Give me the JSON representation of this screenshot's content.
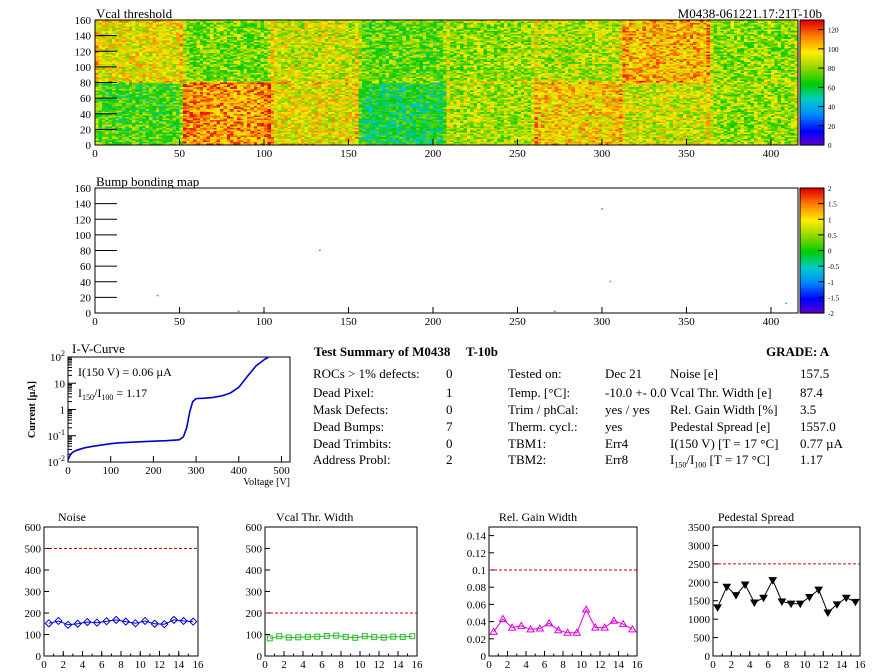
{
  "vcal_map": {
    "title": "Vcal threshold",
    "module_id": "M0438-061221.17:21T-10b",
    "x_ticks": [
      0,
      50,
      100,
      150,
      200,
      250,
      300,
      350,
      400
    ],
    "y_ticks": [
      0,
      20,
      40,
      60,
      80,
      100,
      120,
      140,
      160
    ],
    "xlim": [
      0,
      416
    ],
    "ylim": [
      0,
      160
    ],
    "palette_ticks": [
      0,
      20,
      40,
      60,
      80,
      100,
      120
    ],
    "palette_range": [
      0,
      130
    ],
    "roc_base_values": [
      [
        95,
        78,
        90,
        75,
        82,
        86,
        105,
        80
      ],
      [
        72,
        110,
        95,
        62,
        85,
        100,
        90,
        82
      ]
    ]
  },
  "bump_map": {
    "title": "Bump bonding map",
    "x_ticks": [
      0,
      50,
      100,
      150,
      200,
      250,
      300,
      350,
      400
    ],
    "y_ticks": [
      0,
      20,
      40,
      60,
      80,
      100,
      120,
      140,
      160
    ],
    "xlim": [
      0,
      416
    ],
    "ylim": [
      0,
      160
    ],
    "palette_ticks": [
      "2",
      "1.5",
      "1",
      "0.5",
      "0",
      "-0.5",
      "-1",
      "-1.5",
      "-2"
    ],
    "palette_range": [
      -2,
      2
    ],
    "dots": [
      {
        "x": 37,
        "y": 22,
        "color": "#33cc66"
      },
      {
        "x": 85,
        "y": 2,
        "color": "#33cc66"
      },
      {
        "x": 133,
        "y": 80,
        "color": "#33cc66"
      },
      {
        "x": 272,
        "y": 2,
        "color": "#33cc66"
      },
      {
        "x": 300,
        "y": 133,
        "color": "#ff66aa"
      },
      {
        "x": 305,
        "y": 40,
        "color": "#ff66aa"
      },
      {
        "x": 409,
        "y": 12,
        "color": "#33cc66"
      }
    ]
  },
  "iv_curve": {
    "title": "I-V-Curve",
    "annot1": "I(150 V) = 0.06 µA",
    "annot2_main": "I",
    "annot2_sub1": "150",
    "annot2_slash": "/I",
    "annot2_sub2": "100",
    "annot2_value": " =  1.17",
    "ylabel": "Current [µA]",
    "xlabel": "Voltage [V]",
    "x_ticks": [
      0,
      100,
      200,
      300,
      400,
      500
    ],
    "y_ticks": [
      "10",
      "10",
      "1",
      "10",
      "10"
    ],
    "y_exps": [
      "2",
      "",
      "",
      "-1",
      "-2"
    ],
    "xlim": [
      0,
      520
    ],
    "ylim_log10": [
      -2,
      2
    ],
    "points": [
      [
        0,
        0.012
      ],
      [
        5,
        0.018
      ],
      [
        10,
        0.023
      ],
      [
        20,
        0.028
      ],
      [
        40,
        0.035
      ],
      [
        60,
        0.04
      ],
      [
        80,
        0.045
      ],
      [
        100,
        0.05
      ],
      [
        120,
        0.054
      ],
      [
        150,
        0.057
      ],
      [
        180,
        0.06
      ],
      [
        200,
        0.062
      ],
      [
        230,
        0.065
      ],
      [
        260,
        0.07
      ],
      [
        270,
        0.09
      ],
      [
        278,
        0.2
      ],
      [
        285,
        0.8
      ],
      [
        292,
        2.0
      ],
      [
        300,
        2.6
      ],
      [
        320,
        2.7
      ],
      [
        340,
        2.9
      ],
      [
        360,
        3.3
      ],
      [
        380,
        4.2
      ],
      [
        400,
        7
      ],
      [
        420,
        18
      ],
      [
        440,
        45
      ],
      [
        460,
        80
      ],
      [
        470,
        100
      ]
    ]
  },
  "summary": {
    "title": "Test Summary of M0438",
    "test_id": "T-10b",
    "grade": "GRADE:  A",
    "left": [
      {
        "label": "ROCs > 1% defects:",
        "value": "0"
      },
      {
        "label": "Dead Pixel:",
        "value": "1"
      },
      {
        "label": "Mask Defects:",
        "value": "0"
      },
      {
        "label": "Dead Bumps:",
        "value": "7"
      },
      {
        "label": "Dead Trimbits:",
        "value": "0"
      },
      {
        "label": "Address Probl:",
        "value": "2"
      }
    ],
    "middle": [
      {
        "label": "Tested on:",
        "value": "Dec 21"
      },
      {
        "label": "Temp. [°C]:",
        "value": "-10.0 +- 0.0"
      },
      {
        "label": "Trim / phCal:",
        "value": "yes / yes"
      },
      {
        "label": "Therm. cycl.:",
        "value": "yes"
      },
      {
        "label": "TBM1:",
        "value": "Err4"
      },
      {
        "label": "TBM2:",
        "value": "Err8"
      }
    ],
    "right": [
      {
        "label": "Noise [e]",
        "value": "157.5"
      },
      {
        "label": "Vcal Thr. Width [e]",
        "value": "87.4"
      },
      {
        "label": "Rel. Gain Width [%]",
        "value": "3.5"
      },
      {
        "label": "Pedestal Spread [e]",
        "value": "1557.0"
      },
      {
        "label": "I(150 V) [T = 17 °C]",
        "value": "0.77 µA"
      },
      {
        "label_main": "I",
        "label_sub1": "150",
        "label_mid": "/I",
        "label_sub2": "100",
        "label_tail": "  [T = 17 °C]",
        "value": "1.17"
      }
    ]
  },
  "chart_data": [
    {
      "type": "line",
      "title": "Noise",
      "x": [
        0.5,
        1.5,
        2.5,
        3.5,
        4.5,
        5.5,
        6.5,
        7.5,
        8.5,
        9.5,
        10.5,
        11.5,
        12.5,
        13.5,
        14.5,
        15.5
      ],
      "values": [
        152,
        163,
        145,
        150,
        158,
        155,
        162,
        168,
        160,
        152,
        163,
        150,
        148,
        168,
        163,
        160
      ],
      "xlim": [
        0,
        16
      ],
      "ylim": [
        0,
        600
      ],
      "x_ticks": [
        0,
        2,
        4,
        6,
        8,
        10,
        12,
        14,
        16
      ],
      "y_ticks": [
        0,
        100,
        200,
        300,
        400,
        500,
        600
      ],
      "y_tick_labels": [
        "0",
        "100",
        "200",
        "300",
        "400",
        "500",
        "600"
      ],
      "threshold": 500,
      "color": "#0000cc",
      "marker": "diamond"
    },
    {
      "type": "line",
      "title": "Vcal Thr. Width",
      "x": [
        0.5,
        1.5,
        2.5,
        3.5,
        4.5,
        5.5,
        6.5,
        7.5,
        8.5,
        9.5,
        10.5,
        11.5,
        12.5,
        13.5,
        14.5,
        15.5
      ],
      "values": [
        82,
        92,
        86,
        87,
        89,
        90,
        93,
        95,
        89,
        85,
        92,
        88,
        86,
        90,
        89,
        92
      ],
      "xlim": [
        0,
        16
      ],
      "ylim": [
        0,
        600
      ],
      "x_ticks": [
        0,
        2,
        4,
        6,
        8,
        10,
        12,
        14,
        16
      ],
      "y_ticks": [
        0,
        100,
        200,
        300,
        400,
        500,
        600
      ],
      "y_tick_labels": [
        "0",
        "100",
        "200",
        "300",
        "400",
        "500",
        "600"
      ],
      "threshold": 200,
      "color": "#22bb22",
      "marker": "square"
    },
    {
      "type": "line",
      "title": "Rel. Gain Width",
      "x": [
        0.5,
        1.5,
        2.5,
        3.5,
        4.5,
        5.5,
        6.5,
        7.5,
        8.5,
        9.5,
        10.5,
        11.5,
        12.5,
        13.5,
        14.5,
        15.5
      ],
      "values": [
        0.028,
        0.043,
        0.033,
        0.035,
        0.031,
        0.032,
        0.038,
        0.03,
        0.027,
        0.027,
        0.054,
        0.033,
        0.033,
        0.041,
        0.037,
        0.031
      ],
      "xlim": [
        0,
        16
      ],
      "ylim": [
        0,
        0.15
      ],
      "x_ticks": [
        0,
        2,
        4,
        6,
        8,
        10,
        12,
        14,
        16
      ],
      "y_ticks": [
        0,
        0.02,
        0.04,
        0.06,
        0.08,
        0.1,
        0.12,
        0.14
      ],
      "y_tick_labels": [
        "0",
        "0.02",
        "0.04",
        "0.06",
        "0.08",
        "0.1",
        "0.12",
        "0.14"
      ],
      "threshold": 0.1,
      "color": "#dd00dd",
      "marker": "triangle"
    },
    {
      "type": "line",
      "title": "Pedestal Spread",
      "x": [
        0.5,
        1.5,
        2.5,
        3.5,
        4.5,
        5.5,
        6.5,
        7.5,
        8.5,
        9.5,
        10.5,
        11.5,
        12.5,
        13.5,
        14.5,
        15.5
      ],
      "values": [
        1320,
        1880,
        1650,
        1940,
        1450,
        1580,
        2060,
        1480,
        1420,
        1420,
        1600,
        1800,
        1180,
        1400,
        1580,
        1470
      ],
      "xlim": [
        0,
        16
      ],
      "ylim": [
        0,
        3500
      ],
      "x_ticks": [
        0,
        2,
        4,
        6,
        8,
        10,
        12,
        14,
        16
      ],
      "y_ticks": [
        0,
        500,
        1000,
        1500,
        2000,
        2500,
        3000,
        3500
      ],
      "y_tick_labels": [
        "0",
        "500",
        "1000",
        "1500",
        "2000",
        "2500",
        "3000",
        "3500"
      ],
      "threshold": 2500,
      "color": "#000000",
      "marker": "triangle-down"
    }
  ]
}
